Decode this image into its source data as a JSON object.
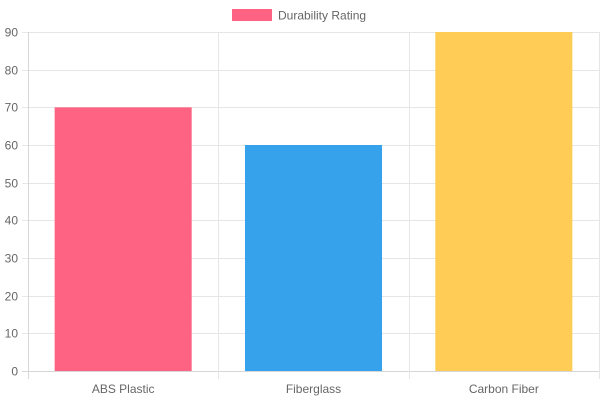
{
  "chart_data": {
    "type": "bar",
    "categories": [
      "ABS Plastic",
      "Fiberglass",
      "Carbon Fiber"
    ],
    "series": [
      {
        "name": "Durability Rating",
        "values": [
          70,
          60,
          90
        ],
        "colors": [
          "#ff6384",
          "#36a2eb",
          "#ffcd56"
        ],
        "legend_color": "#ff6384"
      }
    ],
    "title": "",
    "xlabel": "",
    "ylabel": "",
    "ylim": [
      0,
      90
    ],
    "yticks": [
      0,
      10,
      20,
      30,
      40,
      50,
      60,
      70,
      80,
      90
    ],
    "grid": true,
    "legend_position": "top-center"
  }
}
